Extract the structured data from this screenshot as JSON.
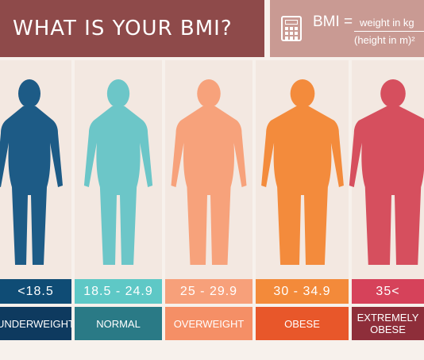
{
  "header": {
    "title": "WHAT IS YOUR BMI?",
    "formula": {
      "lhs": "BMI =",
      "numerator": "weight in kg",
      "denominator": "(height in m)²",
      "icon": "calculator-icon"
    }
  },
  "categories": [
    {
      "range": "<18.5",
      "label": "UNDERWEIGHT",
      "color": "#1f5f8b",
      "figure_color": "#1d5b86",
      "band_color": "#0f4c75",
      "label_color": "#0e3a5f"
    },
    {
      "range": "18.5 - 24.9",
      "label": "NORMAL",
      "color": "#6ccbcd",
      "figure_color": "#6cc6c8",
      "band_color": "#5ec8c6",
      "label_color": "#2a7a86"
    },
    {
      "range": "25 - 29.9",
      "label": "OVERWEIGHT",
      "color": "#f6a27a",
      "figure_color": "#f7a27b",
      "band_color": "#f7a07a",
      "label_color": "#f58f66"
    },
    {
      "range": "30 - 34.9",
      "label": "OBESE",
      "color": "#f08a3e",
      "figure_color": "#f38b3c",
      "band_color": "#f38a3a",
      "label_color": "#e8572a"
    },
    {
      "range": "35<",
      "label": "EXTREMELY\nOBESE",
      "color": "#d44e5b",
      "figure_color": "#d64f5e",
      "band_color": "#d6425a",
      "label_color": "#8e2e3a"
    }
  ]
}
